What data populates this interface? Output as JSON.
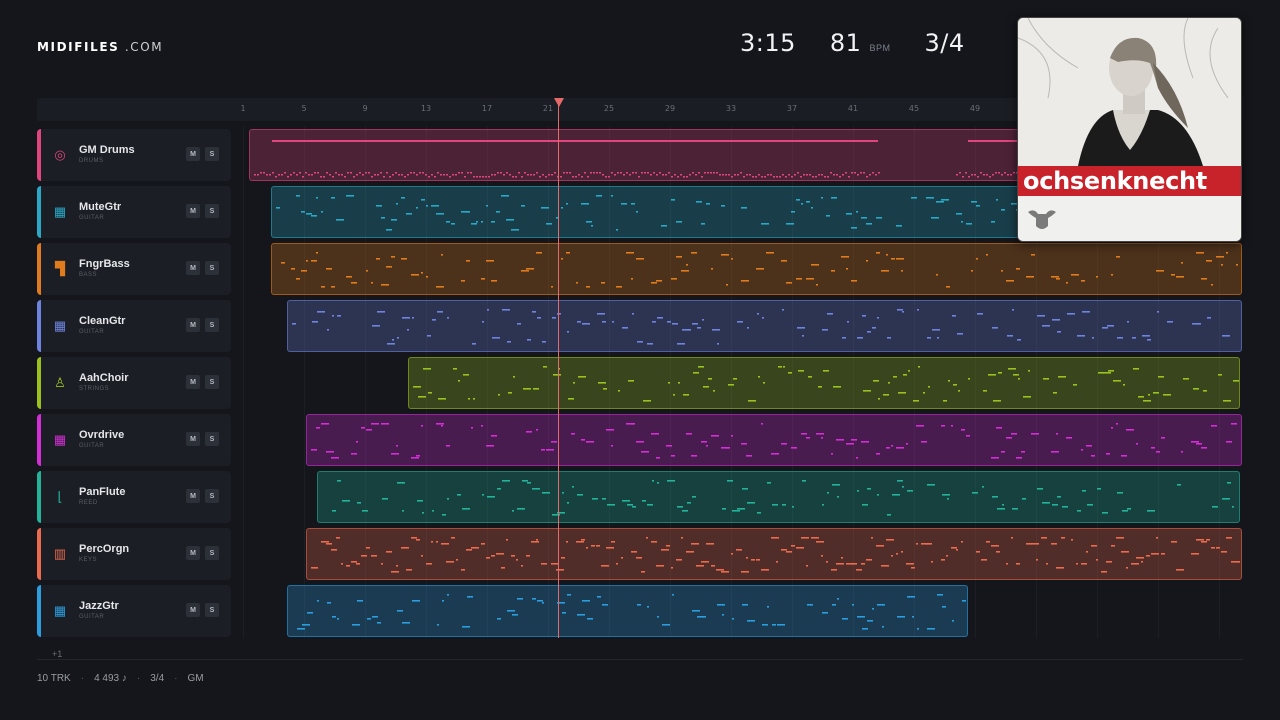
{
  "brand": {
    "name": "MIDIFILES",
    "suffix": ".COM"
  },
  "stats": {
    "time": "3:15",
    "bpm": "81",
    "bpm_unit": "BPM",
    "time_signature": "3/4"
  },
  "ruler": {
    "bars": [
      "1",
      "5",
      "9",
      "13",
      "17",
      "21",
      "25",
      "29",
      "33",
      "37",
      "41",
      "45",
      "49"
    ]
  },
  "playhead": {
    "bar": 21
  },
  "colors": {
    "background": "#14161b",
    "playhead": "#e56b6b"
  },
  "tracks": [
    {
      "name": "GM Drums",
      "type": "DRUMS",
      "icon": "drum-icon",
      "color": "#e0457e",
      "mute": "M",
      "solo": "S"
    },
    {
      "name": "MuteGtr",
      "type": "GUITAR",
      "icon": "guitar-icon",
      "color": "#29a9c7",
      "mute": "M",
      "solo": "S"
    },
    {
      "name": "FngrBass",
      "type": "BASS",
      "icon": "bass-icon",
      "color": "#e07b1e",
      "mute": "M",
      "solo": "S"
    },
    {
      "name": "CleanGtr",
      "type": "GUITAR",
      "icon": "guitar-icon",
      "color": "#6f84e0",
      "mute": "M",
      "solo": "S"
    },
    {
      "name": "AahChoir",
      "type": "STRINGS",
      "icon": "choir-icon",
      "color": "#9cc11f",
      "mute": "M",
      "solo": "S"
    },
    {
      "name": "Ovrdrive",
      "type": "GUITAR",
      "icon": "guitar-icon",
      "color": "#d52ed6",
      "mute": "M",
      "solo": "S"
    },
    {
      "name": "PanFlute",
      "type": "REED",
      "icon": "flute-icon",
      "color": "#22b39a",
      "mute": "M",
      "solo": "S"
    },
    {
      "name": "PercOrgn",
      "type": "KEYS",
      "icon": "keys-icon",
      "color": "#ec6a4e",
      "mute": "M",
      "solo": "S"
    },
    {
      "name": "JazzGtr",
      "type": "GUITAR",
      "icon": "guitar-icon",
      "color": "#2b9ee0",
      "mute": "M",
      "solo": "S"
    }
  ],
  "more_tracks": "+1",
  "footer": {
    "tracks": "10 TRK",
    "notes": "4 493 ♪",
    "time_signature": "3/4",
    "standard": "GM"
  },
  "album": {
    "artist": "ochsenknecht"
  }
}
